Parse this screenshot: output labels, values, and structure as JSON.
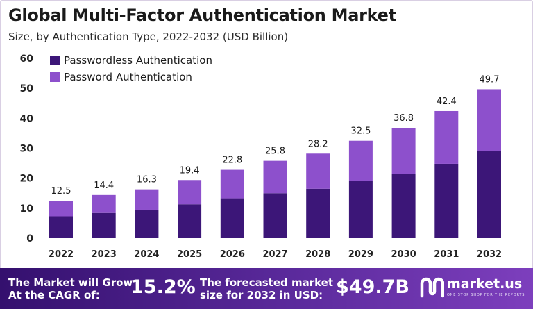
{
  "title": "Global Multi-Factor Authentication Market",
  "subtitle": "Size, by Authentication Type, 2022-2032 (USD Billion)",
  "colors": {
    "passwordless": "#3c1678",
    "password": "#8d50cc",
    "footer_start": "#34106e",
    "footer_end": "#7d3fbd",
    "axis_text": "#222222"
  },
  "chart_data": {
    "type": "bar",
    "stacked": true,
    "categories": [
      "2022",
      "2023",
      "2024",
      "2025",
      "2026",
      "2027",
      "2028",
      "2029",
      "2030",
      "2031",
      "2032"
    ],
    "series": [
      {
        "name": "Passwordless Authentication",
        "values": [
          7.3,
          8.4,
          9.5,
          11.3,
          13.3,
          15.0,
          16.5,
          19.0,
          21.5,
          24.8,
          29.0
        ]
      },
      {
        "name": "Password Authentication",
        "values": [
          5.2,
          6.0,
          6.8,
          8.1,
          9.5,
          10.8,
          11.7,
          13.5,
          15.3,
          17.6,
          20.7
        ]
      }
    ],
    "totals": [
      12.5,
      14.4,
      16.3,
      19.4,
      22.8,
      25.8,
      28.2,
      32.5,
      36.8,
      42.4,
      49.7
    ],
    "total_labels": [
      "12.5",
      "14.4",
      "16.3",
      "19.4",
      "22.8",
      "25.8",
      "28.2",
      "32.5",
      "36.8",
      "42.4",
      "49.7"
    ],
    "y_ticks": [
      "0",
      "10",
      "20",
      "30",
      "40",
      "50",
      "60"
    ],
    "ylim": [
      0,
      60
    ],
    "grid": false,
    "legend_position": "top-left"
  },
  "footer": {
    "cagr_line1": "The Market will Grow",
    "cagr_line2": "At the CAGR of:",
    "cagr_value": "15.2%",
    "forecast_line1": "The forecasted market",
    "forecast_line2": "size for 2032 in USD:",
    "forecast_value": "$49.7B",
    "logo_name": "market.us",
    "logo_tagline": "ONE STOP SHOP FOR THE REPORTS",
    "logo_icon": "market-us-logo-icon"
  }
}
